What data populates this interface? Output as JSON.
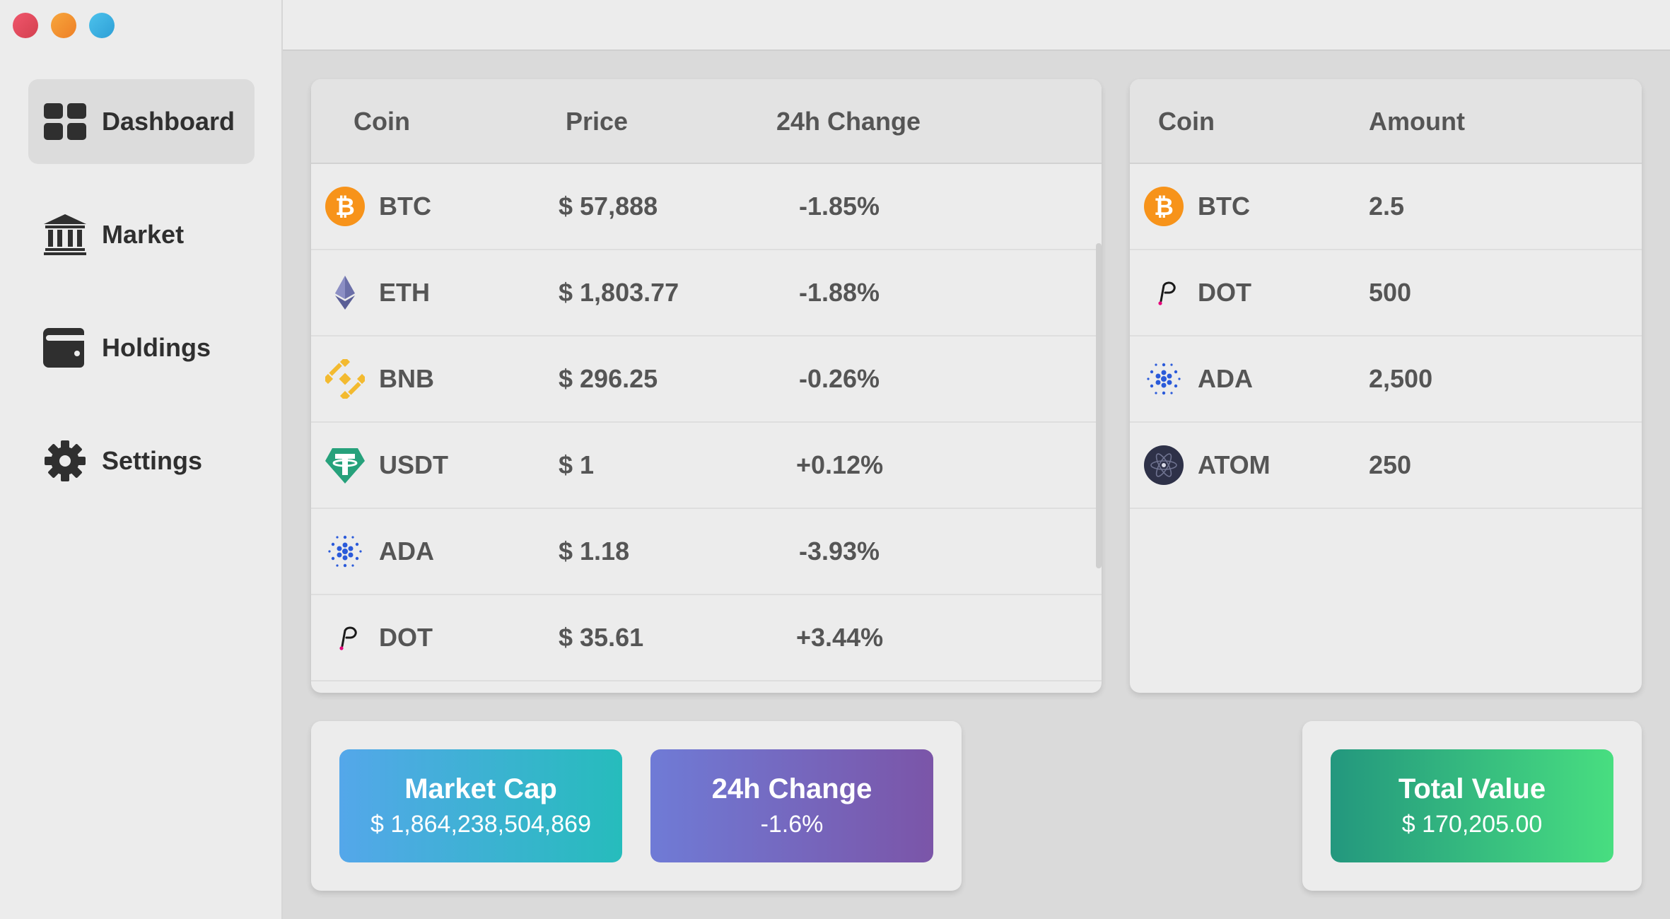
{
  "sidebar": {
    "items": [
      {
        "label": "Dashboard",
        "icon": "dashboard-grid-icon",
        "active": true
      },
      {
        "label": "Market",
        "icon": "bank-icon",
        "active": false
      },
      {
        "label": "Holdings",
        "icon": "wallet-icon",
        "active": false
      },
      {
        "label": "Settings",
        "icon": "gear-icon",
        "active": false
      }
    ]
  },
  "market_table": {
    "headers": {
      "coin": "Coin",
      "price": "Price",
      "change": "24h Change"
    },
    "rows": [
      {
        "coin": "BTC",
        "icon": "bitcoin-icon",
        "price": "$ 57,888",
        "change": "-1.85%"
      },
      {
        "coin": "ETH",
        "icon": "ethereum-icon",
        "price": "$ 1,803.77",
        "change": "-1.88%"
      },
      {
        "coin": "BNB",
        "icon": "binance-icon",
        "price": "$ 296.25",
        "change": "-0.26%"
      },
      {
        "coin": "USDT",
        "icon": "tether-icon",
        "price": "$ 1",
        "change": "+0.12%"
      },
      {
        "coin": "ADA",
        "icon": "cardano-icon",
        "price": "$ 1.18",
        "change": "-3.93%"
      },
      {
        "coin": "DOT",
        "icon": "polkadot-icon",
        "price": "$ 35.61",
        "change": "+3.44%"
      }
    ]
  },
  "holdings_table": {
    "headers": {
      "coin": "Coin",
      "amount": "Amount"
    },
    "rows": [
      {
        "coin": "BTC",
        "icon": "bitcoin-icon",
        "amount": "2.5"
      },
      {
        "coin": "DOT",
        "icon": "polkadot-icon",
        "amount": "500"
      },
      {
        "coin": "ADA",
        "icon": "cardano-icon",
        "amount": "2,500"
      },
      {
        "coin": "ATOM",
        "icon": "cosmos-icon",
        "amount": "250"
      }
    ]
  },
  "stats": {
    "market_cap": {
      "title": "Market Cap",
      "value": "$ 1,864,238,504,869"
    },
    "change_24h": {
      "title": "24h Change",
      "value": "-1.6%"
    },
    "total_value": {
      "title": "Total Value",
      "value": "$ 170,205.00"
    }
  },
  "colors": {
    "bitcoin": "#f7931a",
    "binance": "#f3ba2f",
    "tether": "#26a17b",
    "cardano": "#2a5ada",
    "cosmos": "#2e3148",
    "polkadot": "#e6007a"
  }
}
